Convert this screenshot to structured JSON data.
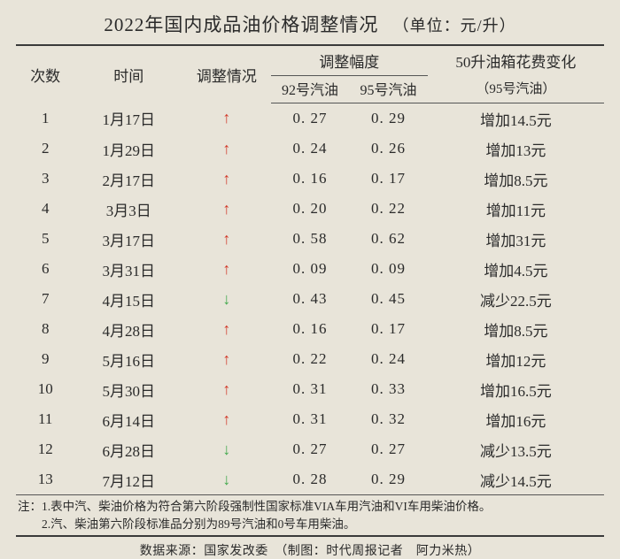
{
  "title_main": "2022年国内成品油价格调整情况",
  "title_unit": "（单位：元/升）",
  "headers": {
    "idx": "次数",
    "date": "时间",
    "direction": "调整情况",
    "amplitude": "调整幅度",
    "gas92": "92号汽油",
    "gas95": "95号汽油",
    "cost_main": "50升油箱花费变化",
    "cost_sub": "（95号汽油）"
  },
  "arrow_colors": {
    "up": "#d23a2a",
    "down": "#3fa84a"
  },
  "rows": [
    {
      "idx": "1",
      "date": "1月17日",
      "dir": "up",
      "g92": "0. 27",
      "g95": "0. 29",
      "cost": "增加14.5元"
    },
    {
      "idx": "2",
      "date": "1月29日",
      "dir": "up",
      "g92": "0. 24",
      "g95": "0. 26",
      "cost": "增加13元"
    },
    {
      "idx": "3",
      "date": "2月17日",
      "dir": "up",
      "g92": "0. 16",
      "g95": "0. 17",
      "cost": "增加8.5元"
    },
    {
      "idx": "4",
      "date": "3月3日",
      "dir": "up",
      "g92": "0. 20",
      "g95": "0. 22",
      "cost": "增加11元"
    },
    {
      "idx": "5",
      "date": "3月17日",
      "dir": "up",
      "g92": "0. 58",
      "g95": "0. 62",
      "cost": "增加31元"
    },
    {
      "idx": "6",
      "date": "3月31日",
      "dir": "up",
      "g92": "0. 09",
      "g95": "0. 09",
      "cost": "增加4.5元"
    },
    {
      "idx": "7",
      "date": "4月15日",
      "dir": "down",
      "g92": "0. 43",
      "g95": "0. 45",
      "cost": "减少22.5元"
    },
    {
      "idx": "8",
      "date": "4月28日",
      "dir": "up",
      "g92": "0. 16",
      "g95": "0. 17",
      "cost": "增加8.5元"
    },
    {
      "idx": "9",
      "date": "5月16日",
      "dir": "up",
      "g92": "0. 22",
      "g95": "0. 24",
      "cost": "增加12元"
    },
    {
      "idx": "10",
      "date": "5月30日",
      "dir": "up",
      "g92": "0. 31",
      "g95": "0. 33",
      "cost": "增加16.5元"
    },
    {
      "idx": "11",
      "date": "6月14日",
      "dir": "up",
      "g92": "0. 31",
      "g95": "0. 32",
      "cost": "增加16元"
    },
    {
      "idx": "12",
      "date": "6月28日",
      "dir": "down",
      "g92": "0. 27",
      "g95": "0. 27",
      "cost": "减少13.5元"
    },
    {
      "idx": "13",
      "date": "7月12日",
      "dir": "down",
      "g92": "0. 28",
      "g95": "0. 29",
      "cost": "减少14.5元"
    }
  ],
  "footnote1": "注：1.表中汽、柴油价格为符合第六阶段强制性国家标准VIA车用汽油和VI车用柴油价格。",
  "footnote2": "　　2.汽、柴油第六阶段标准品分别为89号汽油和0号车用柴油。",
  "source": "数据来源：国家发改委　（制图：时代周报记者　阿力米热）"
}
